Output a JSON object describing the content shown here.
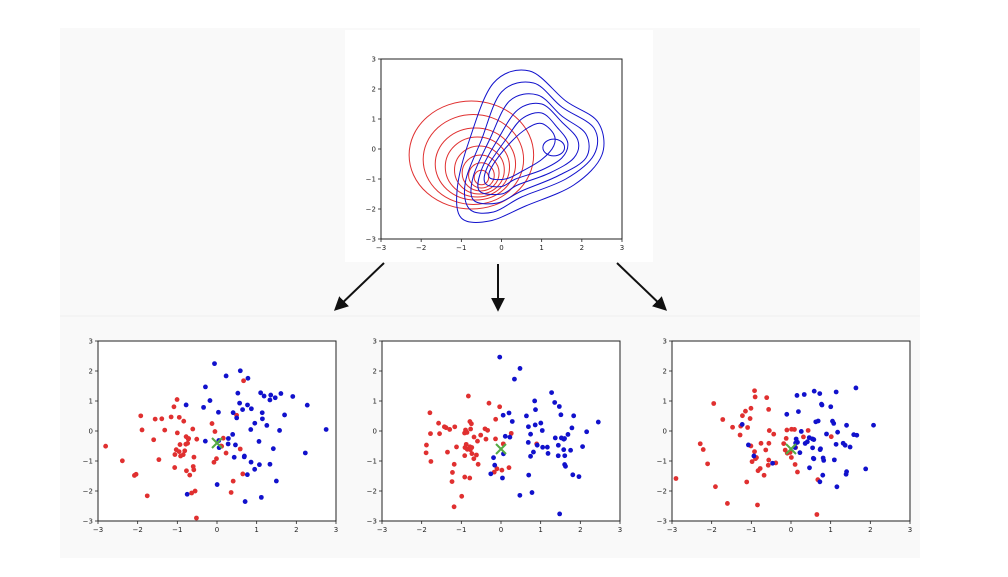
{
  "top_plot": {
    "type": "contour",
    "xlim": [
      -3,
      3
    ],
    "ylim": [
      -3,
      3
    ],
    "x_ticks": [
      "−3",
      "−2",
      "−1",
      "0",
      "1",
      "2",
      "3"
    ],
    "y_ticks": [
      "−3",
      "−2",
      "−1",
      "0",
      "1",
      "2",
      "3"
    ],
    "colors": {
      "class_a": "#e03030",
      "class_b": "#3333dd"
    }
  },
  "bottom_plots": [
    {
      "type": "scatter",
      "xlim": [
        -3,
        3
      ],
      "ylim": [
        -3,
        3
      ],
      "x_ticks": [
        "−3",
        "−2",
        "−1",
        "0",
        "1",
        "2",
        "3"
      ],
      "y_ticks": [
        "−3",
        "−2",
        "−1",
        "0",
        "1",
        "2",
        "3"
      ],
      "marker": {
        "x": 0.0,
        "y": -0.4,
        "glyph": "x",
        "color": "#55aa44"
      }
    },
    {
      "type": "scatter",
      "xlim": [
        -3,
        3
      ],
      "ylim": [
        -3,
        3
      ],
      "x_ticks": [
        "−3",
        "−2",
        "−1",
        "0",
        "1",
        "2",
        "3"
      ],
      "y_ticks": [
        "−3",
        "−2",
        "−1",
        "0",
        "1",
        "2",
        "3"
      ],
      "marker": {
        "x": 0.0,
        "y": -0.6,
        "glyph": "x",
        "color": "#55aa44"
      }
    },
    {
      "type": "scatter",
      "xlim": [
        -3,
        3
      ],
      "ylim": [
        -3,
        3
      ],
      "x_ticks": [
        "−3",
        "−2",
        "−1",
        "0",
        "1",
        "2",
        "3"
      ],
      "y_ticks": [
        "−3",
        "−2",
        "−1",
        "0",
        "1",
        "2",
        "3"
      ],
      "marker": {
        "x": 0.0,
        "y": -0.6,
        "glyph": "x",
        "color": "#55aa44"
      }
    }
  ],
  "colors": {
    "red": "#e03030",
    "blue": "#1111cc",
    "green": "#55aa44",
    "arrow": "#111111"
  }
}
